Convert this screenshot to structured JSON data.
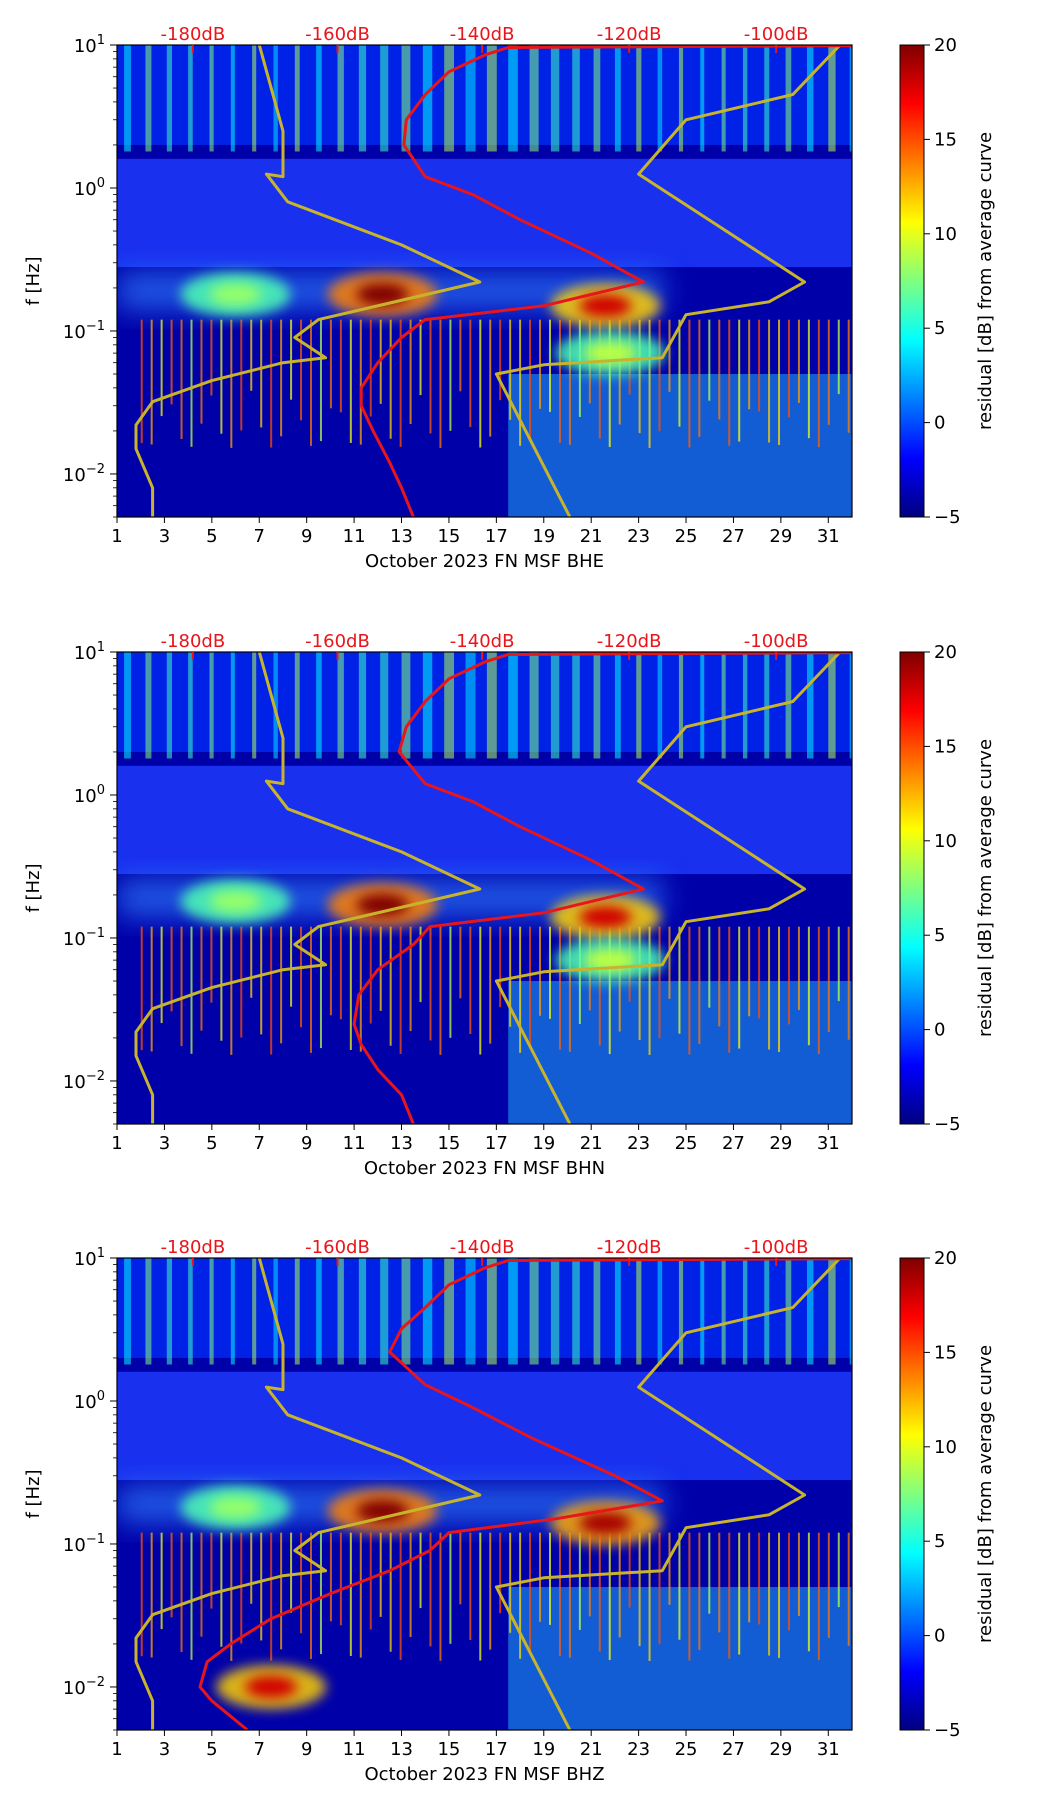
{
  "colors": {
    "reference_curve": "#e8151b",
    "noise_model": "#c8b42c",
    "top_scale_text": "#e8151b"
  },
  "chart_data": [
    {
      "type": "heatmap",
      "title": "",
      "xlabel": "October 2023 FN MSF  BHE",
      "ylabel": "f [Hz]",
      "x_ticks": [
        "1",
        "3",
        "5",
        "7",
        "9",
        "11",
        "13",
        "15",
        "17",
        "19",
        "21",
        "23",
        "25",
        "27",
        "29",
        "31"
      ],
      "xlim": [
        1,
        32
      ],
      "y_scale": "log",
      "ylim": [
        0.005,
        10
      ],
      "y_ticks": [
        {
          "value": 10,
          "base": "10",
          "exp": "1"
        },
        {
          "value": 1,
          "base": "10",
          "exp": "0"
        },
        {
          "value": 0.1,
          "base": "10",
          "exp": "−1"
        },
        {
          "value": 0.01,
          "base": "10",
          "exp": "−2"
        }
      ],
      "top_scale_labels": [
        "-180dB",
        "-160dB",
        "-140dB",
        "-120dB",
        "-100dB"
      ],
      "top_scale_day_positions": [
        4.2,
        10.3,
        16.4,
        22.6,
        28.8
      ],
      "colorbar": {
        "label": "residual [dB] from average curve",
        "ticks": [
          "20",
          "15",
          "10",
          "5",
          "0",
          "−5"
        ],
        "range": [
          -5,
          20
        ]
      },
      "hot_spots": [
        {
          "day": 12.2,
          "freq": 0.18,
          "level": 20
        },
        {
          "day": 21.6,
          "freq": 0.15,
          "level": 18
        },
        {
          "day": 6.0,
          "freq": 0.18,
          "level": 8
        },
        {
          "day": 21.8,
          "freq": 0.07,
          "level": 9
        }
      ],
      "series": [
        {
          "kind": "noise_model",
          "points": [
            [
              2.5,
              0.005
            ],
            [
              2.5,
              0.008
            ],
            [
              1.8,
              0.015
            ],
            [
              1.8,
              0.022
            ],
            [
              2.5,
              0.032
            ],
            [
              5.0,
              0.045
            ],
            [
              8.0,
              0.06
            ],
            [
              9.8,
              0.065
            ],
            [
              8.5,
              0.09
            ],
            [
              9.5,
              0.12
            ],
            [
              16.3,
              0.22
            ],
            [
              13.0,
              0.4
            ],
            [
              8.2,
              0.8
            ],
            [
              7.3,
              1.25
            ],
            [
              8.0,
              1.2
            ],
            [
              8.0,
              2.5
            ],
            [
              7.0,
              10
            ]
          ]
        },
        {
          "kind": "noise_model",
          "points": [
            [
              20.1,
              0.005
            ],
            [
              17.0,
              0.05
            ],
            [
              19.0,
              0.058
            ],
            [
              24.0,
              0.065
            ],
            [
              25.0,
              0.13
            ],
            [
              28.5,
              0.16
            ],
            [
              30.0,
              0.22
            ],
            [
              23.0,
              1.25
            ],
            [
              25.0,
              3.0
            ],
            [
              29.5,
              4.5
            ],
            [
              31.5,
              10
            ]
          ]
        },
        {
          "kind": "reference_curve",
          "points": [
            [
              13.5,
              0.005
            ],
            [
              13.0,
              0.008
            ],
            [
              12.5,
              0.012
            ],
            [
              11.8,
              0.02
            ],
            [
              11.3,
              0.03
            ],
            [
              11.3,
              0.04
            ],
            [
              12.0,
              0.06
            ],
            [
              13.0,
              0.09
            ],
            [
              14.0,
              0.12
            ],
            [
              19.0,
              0.15
            ],
            [
              23.2,
              0.22
            ],
            [
              21.0,
              0.35
            ],
            [
              18.0,
              0.6
            ],
            [
              16.0,
              0.9
            ],
            [
              14.0,
              1.2
            ],
            [
              13.1,
              2.0
            ],
            [
              13.2,
              3.0
            ],
            [
              14.0,
              4.5
            ],
            [
              15.0,
              6.5
            ],
            [
              16.5,
              8.5
            ],
            [
              17.5,
              9.6
            ],
            [
              32.0,
              9.9
            ]
          ]
        }
      ]
    },
    {
      "type": "heatmap",
      "title": "",
      "xlabel": "October 2023 FN MSF  BHN",
      "ylabel": "f [Hz]",
      "x_ticks": [
        "1",
        "3",
        "5",
        "7",
        "9",
        "11",
        "13",
        "15",
        "17",
        "19",
        "21",
        "23",
        "25",
        "27",
        "29",
        "31"
      ],
      "xlim": [
        1,
        32
      ],
      "y_scale": "log",
      "ylim": [
        0.005,
        10
      ],
      "y_ticks": [
        {
          "value": 10,
          "base": "10",
          "exp": "1"
        },
        {
          "value": 1,
          "base": "10",
          "exp": "0"
        },
        {
          "value": 0.1,
          "base": "10",
          "exp": "−1"
        },
        {
          "value": 0.01,
          "base": "10",
          "exp": "−2"
        }
      ],
      "top_scale_labels": [
        "-180dB",
        "-160dB",
        "-140dB",
        "-120dB",
        "-100dB"
      ],
      "top_scale_day_positions": [
        4.2,
        10.3,
        16.4,
        22.6,
        28.8
      ],
      "colorbar": {
        "label": "residual [dB] from average curve",
        "ticks": [
          "20",
          "15",
          "10",
          "5",
          "0",
          "−5"
        ],
        "range": [
          -5,
          20
        ]
      },
      "hot_spots": [
        {
          "day": 12.2,
          "freq": 0.17,
          "level": 20
        },
        {
          "day": 21.6,
          "freq": 0.14,
          "level": 18
        },
        {
          "day": 6.0,
          "freq": 0.18,
          "level": 8
        },
        {
          "day": 21.8,
          "freq": 0.07,
          "level": 9
        }
      ],
      "series": [
        {
          "kind": "noise_model",
          "points": [
            [
              2.5,
              0.005
            ],
            [
              2.5,
              0.008
            ],
            [
              1.8,
              0.015
            ],
            [
              1.8,
              0.022
            ],
            [
              2.5,
              0.032
            ],
            [
              5.0,
              0.045
            ],
            [
              8.0,
              0.06
            ],
            [
              9.8,
              0.065
            ],
            [
              8.5,
              0.09
            ],
            [
              9.5,
              0.12
            ],
            [
              16.3,
              0.22
            ],
            [
              13.0,
              0.4
            ],
            [
              8.2,
              0.8
            ],
            [
              7.3,
              1.25
            ],
            [
              8.0,
              1.2
            ],
            [
              8.0,
              2.5
            ],
            [
              7.0,
              10
            ]
          ]
        },
        {
          "kind": "noise_model",
          "points": [
            [
              20.1,
              0.005
            ],
            [
              17.0,
              0.05
            ],
            [
              19.0,
              0.058
            ],
            [
              24.0,
              0.065
            ],
            [
              25.0,
              0.13
            ],
            [
              28.5,
              0.16
            ],
            [
              30.0,
              0.22
            ],
            [
              23.0,
              1.25
            ],
            [
              25.0,
              3.0
            ],
            [
              29.5,
              4.5
            ],
            [
              31.5,
              10
            ]
          ]
        },
        {
          "kind": "reference_curve",
          "points": [
            [
              13.5,
              0.005
            ],
            [
              13.0,
              0.008
            ],
            [
              12.0,
              0.012
            ],
            [
              11.3,
              0.018
            ],
            [
              11.0,
              0.025
            ],
            [
              11.2,
              0.04
            ],
            [
              12.0,
              0.06
            ],
            [
              13.5,
              0.09
            ],
            [
              14.2,
              0.12
            ],
            [
              19.0,
              0.15
            ],
            [
              23.2,
              0.22
            ],
            [
              21.0,
              0.35
            ],
            [
              18.0,
              0.6
            ],
            [
              16.0,
              0.9
            ],
            [
              14.0,
              1.2
            ],
            [
              12.9,
              2.0
            ],
            [
              13.2,
              3.0
            ],
            [
              14.0,
              4.5
            ],
            [
              15.0,
              6.5
            ],
            [
              16.5,
              8.5
            ],
            [
              17.5,
              9.6
            ],
            [
              32.0,
              9.9
            ]
          ]
        }
      ]
    },
    {
      "type": "heatmap",
      "title": "",
      "xlabel": "October 2023 FN MSF  BHZ",
      "ylabel": "f [Hz]",
      "x_ticks": [
        "1",
        "3",
        "5",
        "7",
        "9",
        "11",
        "13",
        "15",
        "17",
        "19",
        "21",
        "23",
        "25",
        "27",
        "29",
        "31"
      ],
      "xlim": [
        1,
        32
      ],
      "y_scale": "log",
      "ylim": [
        0.005,
        10
      ],
      "y_ticks": [
        {
          "value": 10,
          "base": "10",
          "exp": "1"
        },
        {
          "value": 1,
          "base": "10",
          "exp": "0"
        },
        {
          "value": 0.1,
          "base": "10",
          "exp": "−1"
        },
        {
          "value": 0.01,
          "base": "10",
          "exp": "−2"
        }
      ],
      "top_scale_labels": [
        "-180dB",
        "-160dB",
        "-140dB",
        "-120dB",
        "-100dB"
      ],
      "top_scale_day_positions": [
        4.2,
        10.3,
        16.4,
        22.6,
        28.8
      ],
      "colorbar": {
        "label": "residual [dB] from average curve",
        "ticks": [
          "20",
          "15",
          "10",
          "5",
          "0",
          "−5"
        ],
        "range": [
          -5,
          20
        ]
      },
      "hot_spots": [
        {
          "day": 12.2,
          "freq": 0.17,
          "level": 20
        },
        {
          "day": 21.6,
          "freq": 0.14,
          "level": 19
        },
        {
          "day": 6.0,
          "freq": 0.18,
          "level": 8
        },
        {
          "day": 7.5,
          "freq": 0.01,
          "level": 18
        }
      ],
      "series": [
        {
          "kind": "noise_model",
          "points": [
            [
              2.5,
              0.005
            ],
            [
              2.5,
              0.008
            ],
            [
              1.8,
              0.015
            ],
            [
              1.8,
              0.022
            ],
            [
              2.5,
              0.032
            ],
            [
              5.0,
              0.045
            ],
            [
              8.0,
              0.06
            ],
            [
              9.8,
              0.065
            ],
            [
              8.5,
              0.09
            ],
            [
              9.5,
              0.12
            ],
            [
              16.3,
              0.22
            ],
            [
              13.0,
              0.4
            ],
            [
              8.2,
              0.8
            ],
            [
              7.3,
              1.25
            ],
            [
              8.0,
              1.2
            ],
            [
              8.0,
              2.5
            ],
            [
              7.0,
              10
            ]
          ]
        },
        {
          "kind": "noise_model",
          "points": [
            [
              20.1,
              0.005
            ],
            [
              17.0,
              0.05
            ],
            [
              19.0,
              0.058
            ],
            [
              24.0,
              0.065
            ],
            [
              25.0,
              0.13
            ],
            [
              28.5,
              0.16
            ],
            [
              30.0,
              0.22
            ],
            [
              23.0,
              1.25
            ],
            [
              25.0,
              3.0
            ],
            [
              29.5,
              4.5
            ],
            [
              31.5,
              10
            ]
          ]
        },
        {
          "kind": "reference_curve",
          "points": [
            [
              6.5,
              0.005
            ],
            [
              5.0,
              0.008
            ],
            [
              4.5,
              0.01
            ],
            [
              4.8,
              0.015
            ],
            [
              5.8,
              0.02
            ],
            [
              7.5,
              0.03
            ],
            [
              10.0,
              0.045
            ],
            [
              12.5,
              0.065
            ],
            [
              14.2,
              0.09
            ],
            [
              15.0,
              0.12
            ],
            [
              19.5,
              0.15
            ],
            [
              24.0,
              0.2
            ],
            [
              22.0,
              0.3
            ],
            [
              18.5,
              0.55
            ],
            [
              16.0,
              0.9
            ],
            [
              14.0,
              1.3
            ],
            [
              12.5,
              2.2
            ],
            [
              13.0,
              3.2
            ],
            [
              14.0,
              4.5
            ],
            [
              15.0,
              6.5
            ],
            [
              16.5,
              8.5
            ],
            [
              17.5,
              9.6
            ],
            [
              32.0,
              9.9
            ]
          ]
        }
      ]
    }
  ]
}
